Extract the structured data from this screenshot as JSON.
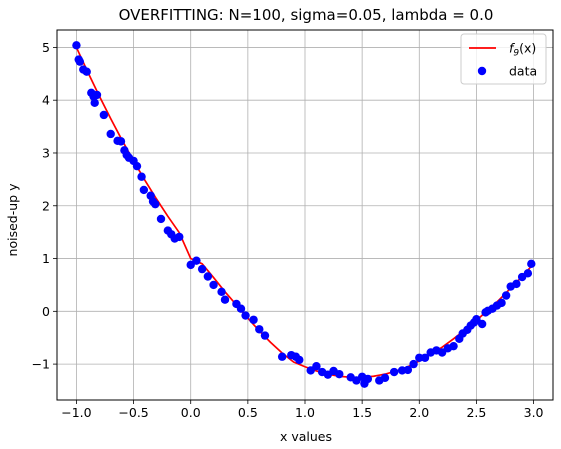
{
  "chart_data": {
    "type": "scatter",
    "title": "OVERFITTING: N=100, sigma=0.05, lambda = 0.0",
    "xlabel": "x values",
    "ylabel": "noised-up y",
    "xlim": [
      -1.17,
      3.17
    ],
    "ylim": [
      -1.68,
      5.33
    ],
    "x_ticks": [
      -1.0,
      -0.5,
      0.0,
      0.5,
      1.0,
      1.5,
      2.0,
      2.5,
      3.0
    ],
    "x_tick_labels": [
      "−1.0",
      "−0.5",
      "0.0",
      "0.5",
      "1.0",
      "1.5",
      "2.0",
      "2.5",
      "3.0"
    ],
    "y_ticks": [
      -1,
      0,
      1,
      2,
      3,
      4,
      5
    ],
    "y_tick_labels": [
      "−1",
      "0",
      "1",
      "2",
      "3",
      "4",
      "5"
    ],
    "grid": true,
    "legend_position": "top-right",
    "series": [
      {
        "name": "f9(x)",
        "kind": "line",
        "color": "#ff0000",
        "legend_label_main": "f",
        "legend_label_sub": "9",
        "legend_label_tail": "(x)",
        "x": [
          -1.0,
          -0.9,
          -0.8,
          -0.7,
          -0.6,
          -0.5,
          -0.4,
          -0.3,
          -0.2,
          -0.1,
          0.0,
          0.1,
          0.2,
          0.3,
          0.4,
          0.5,
          0.6,
          0.7,
          0.8,
          0.9,
          1.0,
          1.1,
          1.2,
          1.3,
          1.4,
          1.5,
          1.6,
          1.7,
          1.8,
          1.9,
          2.0,
          2.1,
          2.2,
          2.3,
          2.4,
          2.5,
          2.6,
          2.7,
          2.8,
          2.9,
          3.0
        ],
        "y": [
          5.0,
          4.53,
          4.08,
          3.65,
          3.24,
          2.85,
          2.48,
          2.13,
          1.8,
          1.49,
          1.0,
          0.9,
          0.64,
          0.37,
          0.12,
          -0.13,
          -0.37,
          -0.59,
          -0.79,
          -0.96,
          -1.05,
          -1.13,
          -1.19,
          -1.23,
          -1.25,
          -1.25,
          -1.23,
          -1.19,
          -1.13,
          -1.05,
          -0.94,
          -0.82,
          -0.68,
          -0.52,
          -0.35,
          -0.17,
          0.02,
          0.22,
          0.44,
          0.66,
          0.9
        ]
      },
      {
        "name": "data",
        "kind": "scatter",
        "color": "#0000ff",
        "x": [
          -1.0,
          -0.98,
          -0.97,
          -0.94,
          -0.91,
          -0.87,
          -0.85,
          -0.84,
          -0.82,
          -0.76,
          -0.7,
          -0.64,
          -0.61,
          -0.58,
          -0.56,
          -0.54,
          -0.5,
          -0.47,
          -0.43,
          -0.41,
          -0.35,
          -0.33,
          -0.31,
          -0.26,
          -0.2,
          -0.17,
          -0.14,
          -0.1,
          0.0,
          0.05,
          0.1,
          0.15,
          0.2,
          0.27,
          0.3,
          0.4,
          0.44,
          0.48,
          0.55,
          0.6,
          0.65,
          0.8,
          0.88,
          0.92,
          0.95,
          1.05,
          1.1,
          1.15,
          1.2,
          1.25,
          1.3,
          1.4,
          1.45,
          1.5,
          1.52,
          1.55,
          1.65,
          1.7,
          1.78,
          1.85,
          1.9,
          1.95,
          2.0,
          2.05,
          2.1,
          2.15,
          2.2,
          2.25,
          2.3,
          2.35,
          2.38,
          2.42,
          2.45,
          2.48,
          2.5,
          2.55,
          2.58,
          2.6,
          2.64,
          2.68,
          2.72,
          2.76,
          2.8,
          2.85,
          2.9,
          2.95,
          2.98
        ],
        "y": [
          5.04,
          4.77,
          4.73,
          4.58,
          4.54,
          4.14,
          4.07,
          3.95,
          4.1,
          3.72,
          3.36,
          3.23,
          3.22,
          3.05,
          2.96,
          2.91,
          2.85,
          2.75,
          2.55,
          2.3,
          2.19,
          2.08,
          2.03,
          1.75,
          1.53,
          1.46,
          1.38,
          1.41,
          0.88,
          0.96,
          0.8,
          0.66,
          0.5,
          0.37,
          0.22,
          0.14,
          0.05,
          -0.08,
          -0.16,
          -0.34,
          -0.46,
          -0.86,
          -0.83,
          -0.86,
          -0.92,
          -1.12,
          -1.04,
          -1.15,
          -1.2,
          -1.13,
          -1.19,
          -1.25,
          -1.31,
          -1.24,
          -1.37,
          -1.28,
          -1.31,
          -1.26,
          -1.15,
          -1.12,
          -1.11,
          -1.0,
          -0.88,
          -0.88,
          -0.78,
          -0.74,
          -0.78,
          -0.7,
          -0.66,
          -0.52,
          -0.42,
          -0.35,
          -0.27,
          -0.21,
          -0.15,
          -0.24,
          -0.02,
          0.01,
          0.05,
          0.11,
          0.16,
          0.3,
          0.47,
          0.52,
          0.65,
          0.72,
          0.9
        ]
      }
    ]
  }
}
